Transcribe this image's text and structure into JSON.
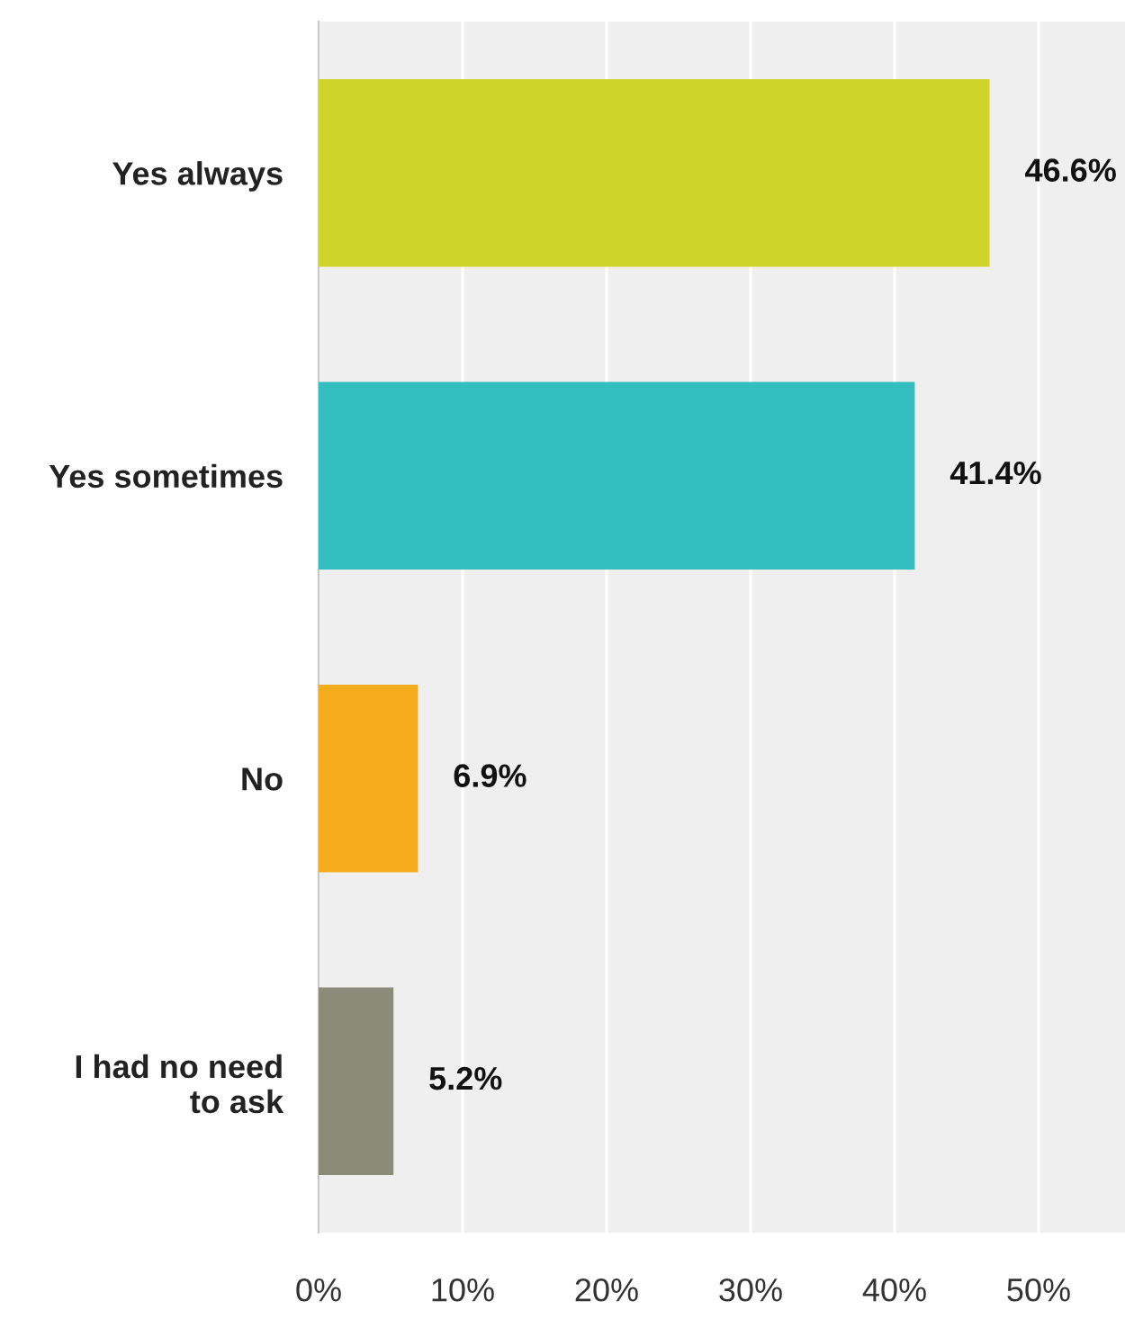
{
  "chart_data": {
    "type": "bar",
    "orientation": "horizontal",
    "categories": [
      "Yes always",
      "Yes sometimes",
      "No",
      "I had no need\nto ask"
    ],
    "values": [
      46.6,
      41.4,
      6.9,
      5.2
    ],
    "colors": [
      "#d0d32a",
      "#33bec0",
      "#f5ad1d",
      "#8a8b79"
    ],
    "value_labels": [
      "46.6%",
      "41.4%",
      "6.9%",
      "5.2%"
    ],
    "xlim": [
      0,
      56
    ],
    "xticks": [
      {
        "value": 0,
        "label": "0%"
      },
      {
        "value": 10,
        "label": "10%"
      },
      {
        "value": 20,
        "label": "20%"
      },
      {
        "value": 30,
        "label": "30%"
      },
      {
        "value": 40,
        "label": "40%"
      },
      {
        "value": 50,
        "label": "50%"
      }
    ],
    "grid": "x"
  }
}
